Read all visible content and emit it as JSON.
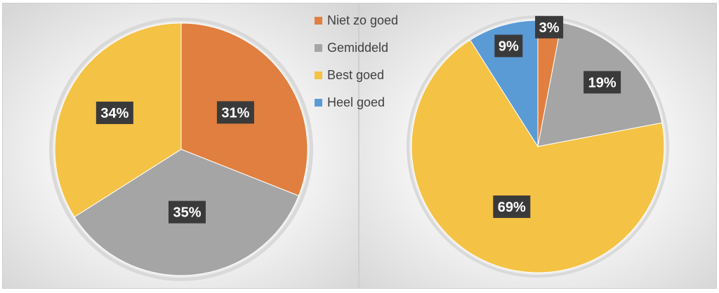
{
  "chart_data": [
    {
      "type": "pie",
      "categories": [
        "Niet zo goed",
        "Gemiddeld",
        "Best goed",
        "Heel goed"
      ],
      "values": [
        31,
        35,
        34,
        0
      ],
      "labels": [
        "31%",
        "35%",
        "34%",
        ""
      ]
    },
    {
      "type": "pie",
      "categories": [
        "Niet zo goed",
        "Gemiddeld",
        "Best goed",
        "Heel goed"
      ],
      "values": [
        3,
        19,
        69,
        9
      ],
      "labels": [
        "3%",
        "19%",
        "69%",
        "9%"
      ]
    }
  ],
  "legend": {
    "placement": "top-center",
    "items": [
      {
        "label": "Niet zo goed",
        "color": "#E07F3F"
      },
      {
        "label": "Gemiddeld",
        "color": "#A5A5A5"
      },
      {
        "label": "Best goed",
        "color": "#F4C244"
      },
      {
        "label": "Heel goed",
        "color": "#5B9BD5"
      }
    ]
  },
  "label_box_color": "#3A3A3A"
}
